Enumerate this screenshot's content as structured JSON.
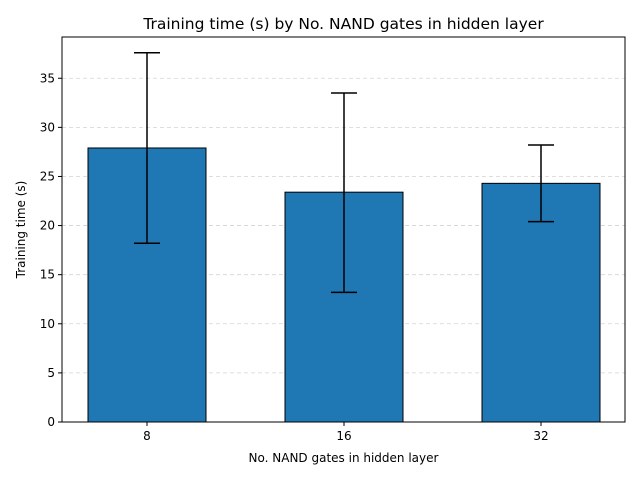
{
  "chart_data": {
    "type": "bar",
    "title": "Training time (s) by No. NAND gates in hidden layer",
    "xlabel": "No. NAND gates in hidden layer",
    "ylabel": "Training time (s)",
    "categories": [
      "8",
      "16",
      "32"
    ],
    "series": [
      {
        "values": [
          27.9,
          23.4,
          24.3
        ],
        "error_low": [
          18.2,
          13.2,
          20.4
        ],
        "error_high": [
          37.6,
          33.5,
          28.2
        ]
      }
    ],
    "ylim": [
      0,
      39.2
    ],
    "yticks": [
      0,
      5,
      10,
      15,
      20,
      25,
      30,
      35
    ],
    "grid": {
      "y": true,
      "x": false,
      "style": "dashed"
    },
    "colors": {
      "bar_fill": "#1f77b4",
      "bar_edge": "#000000",
      "error_bar": "#000000",
      "grid": "#d3d3d3"
    }
  }
}
